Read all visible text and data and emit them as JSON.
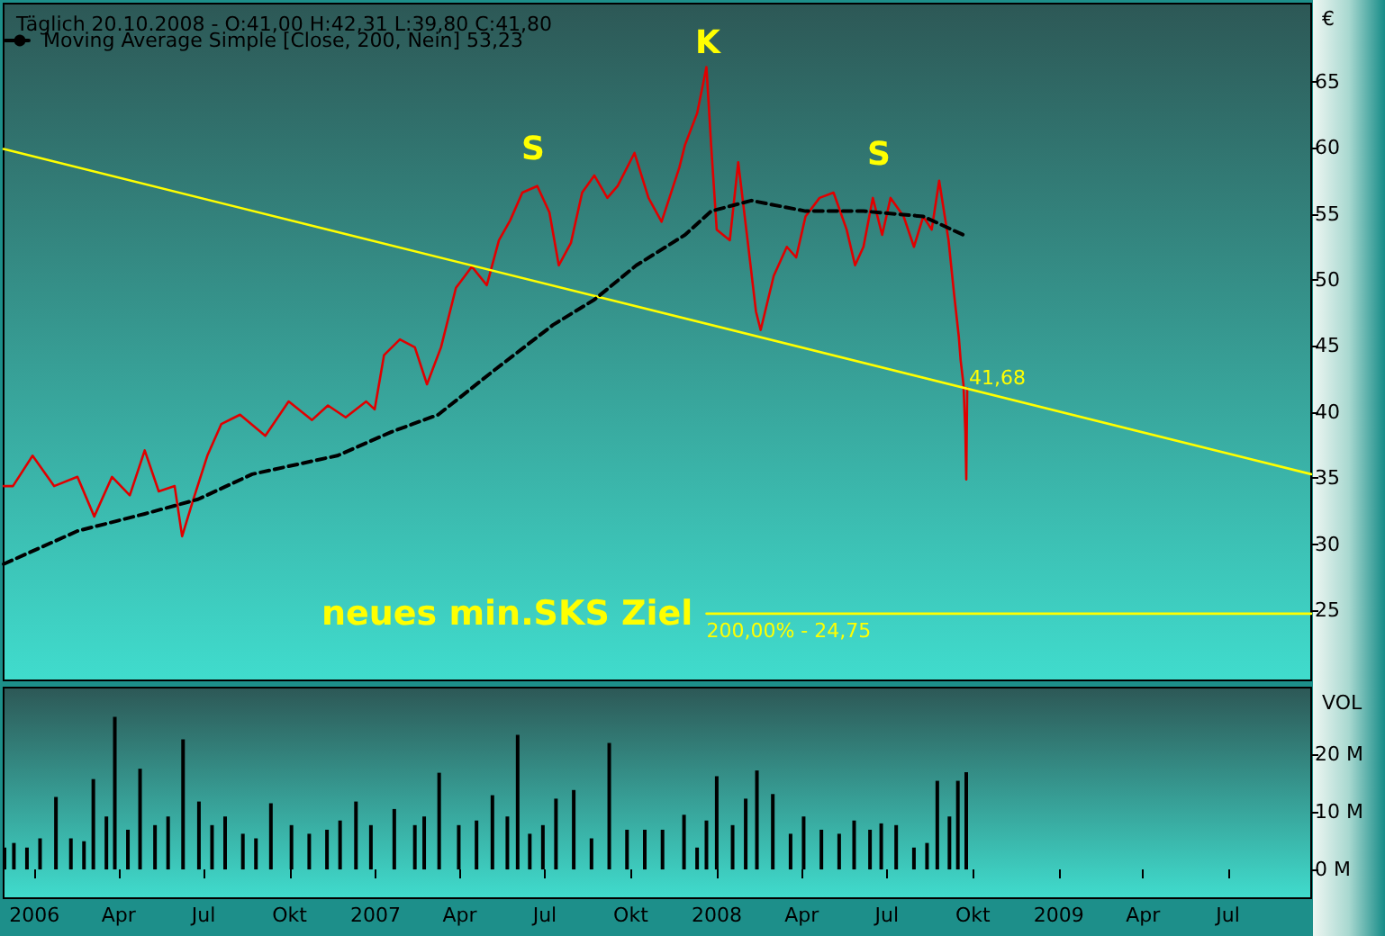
{
  "chart_data": [
    {
      "type": "line",
      "title": "Täglich 20.10.2008 - O:41,00 H:42,31 L:39,80 C:41,80",
      "ylabel": "€",
      "xlim": [
        "2005-11-29",
        "2009-09-28"
      ],
      "ylim": [
        19.7,
        70.9
      ],
      "yticks": [
        25,
        30,
        35,
        40,
        45,
        50,
        55,
        60,
        65
      ],
      "tick_labels": "y",
      "grid": false,
      "legend": "top left",
      "marker": "none",
      "series": [
        {
          "color": "#e00000",
          "x": [
            "2005-11-29",
            "2005-12-09",
            "2005-12-30",
            "2006-01-22",
            "2006-02-16",
            "2006-03-06",
            "2006-03-25",
            "2006-04-13",
            "2006-04-29",
            "2006-05-14",
            "2006-05-31",
            "2006-06-08",
            "2006-06-20",
            "2006-07-05",
            "2006-07-20",
            "2006-08-09",
            "2006-09-05",
            "2006-09-30",
            "2006-10-25",
            "2006-11-11",
            "2006-11-30",
            "2006-12-22",
            "2006-12-31",
            "2007-01-10",
            "2007-01-27",
            "2007-02-12",
            "2007-02-25",
            "2007-03-12",
            "2007-03-28",
            "2007-04-14",
            "2007-04-30",
            "2007-05-13",
            "2007-05-25",
            "2007-06-07",
            "2007-06-23",
            "2007-07-06",
            "2007-07-16",
            "2007-07-29",
            "2007-08-10",
            "2007-08-23",
            "2007-09-06",
            "2007-09-17",
            "2007-10-05",
            "2007-10-20",
            "2007-11-03",
            "2007-11-22",
            "2007-11-28",
            "2007-12-11",
            "2007-12-21",
            "2007-12-26",
            "2008-01-01",
            "2008-01-15",
            "2008-01-24",
            "2008-02-03",
            "2008-02-12",
            "2008-02-17",
            "2008-03-02",
            "2008-03-16",
            "2008-03-26",
            "2008-04-05",
            "2008-04-20",
            "2008-05-05",
            "2008-05-19",
            "2008-05-28",
            "2008-06-06",
            "2008-06-16",
            "2008-06-26",
            "2008-07-05",
            "2008-07-19",
            "2008-07-30",
            "2008-08-09",
            "2008-08-18",
            "2008-08-26",
            "2008-09-05",
            "2008-09-11",
            "2008-09-16",
            "2008-09-18",
            "2008-09-21",
            "2008-09-23",
            "2008-09-24",
            "2008-09-25"
          ],
          "values": [
            34.4,
            34.4,
            36.7,
            34.4,
            35.1,
            32.1,
            35.1,
            33.7,
            37.1,
            34.0,
            34.4,
            30.6,
            33.4,
            36.7,
            39.1,
            39.8,
            38.2,
            40.8,
            39.4,
            40.5,
            39.6,
            40.8,
            40.2,
            44.3,
            45.5,
            44.9,
            42.1,
            44.9,
            49.4,
            51.0,
            49.6,
            53.0,
            54.5,
            56.6,
            57.1,
            55.1,
            51.1,
            52.8,
            56.6,
            57.9,
            56.2,
            57.1,
            59.6,
            56.2,
            54.4,
            58.5,
            60.2,
            62.6,
            66.1,
            60.2,
            53.8,
            53.0,
            58.9,
            53.0,
            47.6,
            46.2,
            50.3,
            52.5,
            51.7,
            54.8,
            56.2,
            56.6,
            53.8,
            51.1,
            52.5,
            56.2,
            53.4,
            56.2,
            54.8,
            52.5,
            54.8,
            53.8,
            57.5,
            53.0,
            48.9,
            45.7,
            43.9,
            42.1,
            38.5,
            34.9,
            41.8
          ]
        },
        {
          "name": "Moving Average Simple [Close, 200, Nein] 53,23",
          "color": "#000000",
          "line_style": "dashed",
          "x": [
            "2005-11-29",
            "2006-02-16",
            "2006-04-29",
            "2006-06-25",
            "2006-08-22",
            "2006-11-21",
            "2007-01-18",
            "2007-03-09",
            "2007-05-05",
            "2007-07-10",
            "2007-08-23",
            "2007-10-07",
            "2007-11-28",
            "2007-12-26",
            "2008-02-07",
            "2008-04-05",
            "2008-06-06",
            "2008-08-09",
            "2008-09-21"
          ],
          "values": [
            28.5,
            31.0,
            32.3,
            33.4,
            35.3,
            36.7,
            38.5,
            39.8,
            43.0,
            46.6,
            48.5,
            51.1,
            53.4,
            55.2,
            56.0,
            55.2,
            55.2,
            54.8,
            53.4
          ]
        },
        {
          "color": "#ffff00",
          "x": [
            "2005-11-29",
            "2009-09-28"
          ],
          "values": [
            59.9,
            35.3
          ]
        },
        {
          "color": "#ffff00",
          "x": [
            "2007-12-21",
            "2009-09-28"
          ],
          "values": [
            24.75,
            24.75
          ]
        }
      ],
      "annotations": [
        "S",
        "K",
        "S",
        {
          "text": "41,68",
          "x": "2008-09-23",
          "y": 41.68
        },
        {
          "text": "neues min.SKS Ziel",
          "x": "2007-12-18",
          "y": 24.75
        },
        {
          "text": "200,00% - 24,75",
          "x": "2007-12-21",
          "y": 24.75
        }
      ]
    },
    {
      "type": "bar",
      "ylabel": "VOL",
      "color": "#000000",
      "xlim": [
        "2005-11-29",
        "2009-09-28"
      ],
      "xticks": [
        {
          "value": "2006-01-01",
          "label": "2006"
        },
        {
          "value": "2006-04-01",
          "label": "Apr"
        },
        {
          "value": "2006-07-01",
          "label": "Jul"
        },
        {
          "value": "2006-10-01",
          "label": "Okt"
        },
        {
          "value": "2007-01-01",
          "label": "2007"
        },
        {
          "value": "2007-04-01",
          "label": "Apr"
        },
        {
          "value": "2007-07-01",
          "label": "Jul"
        },
        {
          "value": "2007-10-01",
          "label": "Okt"
        },
        {
          "value": "2008-01-01",
          "label": "2008"
        },
        {
          "value": "2008-04-01",
          "label": "Apr"
        },
        {
          "value": "2008-07-01",
          "label": "Jul"
        },
        {
          "value": "2008-10-01",
          "label": "Okt"
        },
        {
          "value": "2009-01-01",
          "label": "2009"
        },
        {
          "value": "2009-04-01",
          "label": "Apr"
        },
        {
          "value": "2009-07-01",
          "label": "Jul"
        }
      ],
      "ylim": [
        -5,
        31.6
      ],
      "yticks": [
        {
          "value": 0,
          "label": "0 M"
        },
        {
          "value": 10,
          "label": "10 M"
        },
        {
          "value": 20,
          "label": "20 M"
        }
      ],
      "grid": false,
      "x": [
        "2005-11-30",
        "2005-12-10",
        "2005-12-24",
        "2006-01-07",
        "2006-01-24",
        "2006-02-09",
        "2006-02-23",
        "2006-03-05",
        "2006-03-19",
        "2006-03-28",
        "2006-04-11",
        "2006-04-24",
        "2006-05-10",
        "2006-05-24",
        "2006-06-09",
        "2006-06-26",
        "2006-07-10",
        "2006-07-24",
        "2006-08-12",
        "2006-08-26",
        "2006-09-11",
        "2006-10-03",
        "2006-10-22",
        "2006-11-10",
        "2006-11-24",
        "2006-12-11",
        "2006-12-27",
        "2007-01-21",
        "2007-02-12",
        "2007-02-22",
        "2007-03-10",
        "2007-03-31",
        "2007-04-19",
        "2007-05-06",
        "2007-05-22",
        "2007-06-02",
        "2007-06-15",
        "2007-06-29",
        "2007-07-13",
        "2007-08-01",
        "2007-08-20",
        "2007-09-08",
        "2007-09-27",
        "2007-10-16",
        "2007-11-04",
        "2007-11-27",
        "2007-12-11",
        "2007-12-21",
        "2008-01-01",
        "2008-01-18",
        "2008-02-01",
        "2008-02-13",
        "2008-03-01",
        "2008-03-20",
        "2008-04-03",
        "2008-04-22",
        "2008-05-11",
        "2008-05-27",
        "2008-06-13",
        "2008-06-25",
        "2008-07-11",
        "2008-07-30",
        "2008-08-13",
        "2008-08-24",
        "2008-09-06",
        "2008-09-15",
        "2008-09-24"
      ],
      "values": [
        3.8,
        4.6,
        3.8,
        5.4,
        12.6,
        5.4,
        4.9,
        15.7,
        9.2,
        26.5,
        6.9,
        17.5,
        7.7,
        9.2,
        22.6,
        11.8,
        7.7,
        9.2,
        6.2,
        5.4,
        11.5,
        7.7,
        6.2,
        6.9,
        8.5,
        11.8,
        7.7,
        10.5,
        7.7,
        9.2,
        16.8,
        7.7,
        8.5,
        12.9,
        9.2,
        23.4,
        6.2,
        7.7,
        12.3,
        13.8,
        5.4,
        22.0,
        6.9,
        6.9,
        6.9,
        9.5,
        3.8,
        8.5,
        16.2,
        7.7,
        12.3,
        17.2,
        13.1,
        6.2,
        9.2,
        6.9,
        6.2,
        8.5,
        6.9,
        8.0,
        7.7,
        3.8,
        4.6,
        15.4,
        9.2,
        15.4,
        16.9
      ]
    }
  ]
}
